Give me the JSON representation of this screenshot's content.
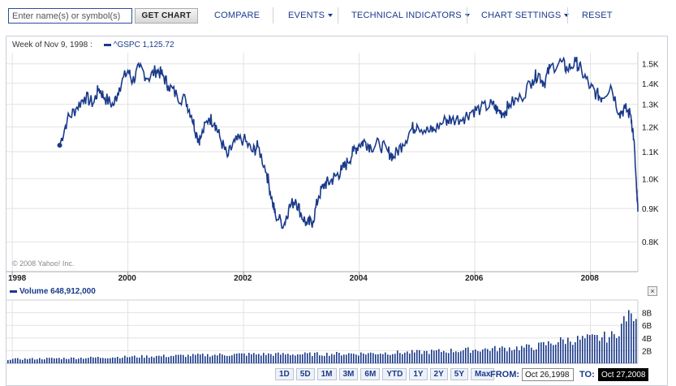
{
  "toolbar": {
    "symbol_placeholder": "Enter name(s) or symbol(s)",
    "get_chart_label": "GET CHART",
    "compare_label": "COMPARE",
    "events_label": "EVENTS",
    "technical_label": "TECHNICAL INDICATORS",
    "settings_label": "CHART SETTINGS",
    "reset_label": "RESET"
  },
  "price_header": {
    "week_label": "Week of Nov 9, 1998 :",
    "series_label": "^GSPC",
    "series_value": "1,125.72"
  },
  "volume_header": {
    "label": "Volume",
    "value": "648,912,000"
  },
  "copyright": "© 2008 Yahoo! Inc.",
  "close_label": "×",
  "range_buttons": [
    "1D",
    "5D",
    "1M",
    "3M",
    "6M",
    "YTD",
    "1Y",
    "2Y",
    "5Y",
    "Max"
  ],
  "date_range": {
    "from_label": "FROM:",
    "from_value": "Oct 26,1998",
    "to_label": "TO:",
    "to_value": "Oct 27,2008"
  },
  "colors": {
    "series": "#1a3a8a",
    "grid": "#e2e2e2",
    "background": "#ffffff"
  },
  "chart_data": [
    {
      "type": "line",
      "series": [
        {
          "name": "^GSPC",
          "x": [
            1998.82,
            1998.95,
            1999.1,
            1999.25,
            1999.4,
            1999.5,
            1999.6,
            1999.75,
            1999.85,
            2000.0,
            2000.08,
            2000.2,
            2000.35,
            2000.5,
            2000.6,
            2000.7,
            2000.85,
            2001.0,
            2001.1,
            2001.2,
            2001.25,
            2001.4,
            2001.5,
            2001.6,
            2001.72,
            2001.85,
            2002.0,
            2002.15,
            2002.25,
            2002.4,
            2002.5,
            2002.55,
            2002.7,
            2002.78,
            2002.9,
            2003.0,
            2003.1,
            2003.2,
            2003.3,
            2003.4,
            2003.5,
            2003.6,
            2003.7,
            2003.8,
            2003.9,
            2004.0,
            2004.1,
            2004.2,
            2004.35,
            2004.5,
            2004.6,
            2004.75,
            2004.9,
            2005.0,
            2005.2,
            2005.3,
            2005.5,
            2005.6,
            2005.8,
            2005.95,
            2006.1,
            2006.3,
            2006.4,
            2006.5,
            2006.6,
            2006.8,
            2007.0,
            2007.1,
            2007.2,
            2007.3,
            2007.5,
            2007.6,
            2007.75,
            2007.85,
            2008.0,
            2008.1,
            2008.2,
            2008.35,
            2008.5,
            2008.6,
            2008.7,
            2008.75,
            2008.8,
            2008.82
          ],
          "y": [
            1125,
            1230,
            1280,
            1335,
            1305,
            1375,
            1330,
            1295,
            1380,
            1465,
            1410,
            1480,
            1425,
            1470,
            1440,
            1390,
            1340,
            1320,
            1250,
            1160,
            1150,
            1240,
            1220,
            1150,
            1080,
            1140,
            1150,
            1100,
            1120,
            1020,
            920,
            880,
            850,
            900,
            930,
            880,
            850,
            860,
            940,
            980,
            990,
            1010,
            1030,
            1060,
            1100,
            1130,
            1140,
            1120,
            1130,
            1100,
            1080,
            1130,
            1190,
            1210,
            1180,
            1190,
            1230,
            1230,
            1240,
            1270,
            1280,
            1300,
            1270,
            1260,
            1300,
            1330,
            1420,
            1450,
            1400,
            1480,
            1510,
            1470,
            1510,
            1460,
            1380,
            1350,
            1330,
            1390,
            1260,
            1280,
            1250,
            1150,
            950,
            890
          ],
          "values_note": ""
        }
      ],
      "title": "",
      "xlabel": "",
      "ylabel": "",
      "x_ticks": [
        "1998",
        "2000",
        "2002",
        "2004",
        "2006",
        "2008"
      ],
      "x_tick_values": [
        1998,
        2000,
        2002,
        2004,
        2006,
        2008
      ],
      "y_ticks": [
        "0.8K",
        "0.9K",
        "1.0K",
        "1.1K",
        "1.2K",
        "1.3K",
        "1.4K",
        "1.5K"
      ],
      "y_tick_values": [
        800,
        900,
        1000,
        1100,
        1200,
        1300,
        1400,
        1500
      ],
      "xlim": [
        1997.9,
        2008.82
      ],
      "ylim": [
        720,
        1560
      ],
      "y_scale": "log",
      "grid": true
    },
    {
      "type": "bar",
      "series": [
        {
          "name": "Volume",
          "x": [
            1998.0,
            1999.0,
            2000.0,
            2001.0,
            2002.0,
            2003.0,
            2004.0,
            2005.0,
            2006.0,
            2007.0,
            2007.5,
            2008.0,
            2008.4,
            2008.75
          ],
          "y": [
            0.65,
            0.8,
            1.0,
            1.2,
            1.4,
            1.4,
            1.5,
            1.7,
            2.1,
            2.5,
            3.5,
            3.8,
            4.2,
            9.0
          ]
        }
      ],
      "y_ticks": [
        "2B",
        "4B",
        "6B",
        "8B"
      ],
      "y_tick_values": [
        2,
        4,
        6,
        8
      ],
      "ylim": [
        0,
        10
      ],
      "grid": true
    }
  ]
}
